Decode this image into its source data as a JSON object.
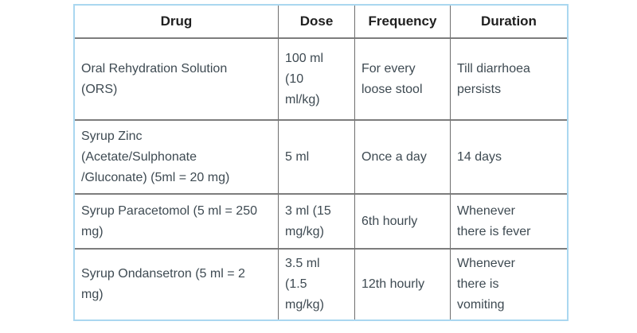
{
  "table": {
    "name": "drug-dosage-table",
    "headers": {
      "drug": "Drug",
      "dose": "Dose",
      "frequency": "Frequency",
      "duration": "Duration"
    },
    "rows": [
      {
        "drug": "Oral Rehydration Solution\n(ORS)",
        "dose": "100 ml\n(10\nml/kg)",
        "frequency": "For every\nloose stool",
        "duration": "Till diarrhoea\npersists"
      },
      {
        "drug": "Syrup Zinc\n(Acetate/Sulphonate\n/Gluconate) (5ml = 20 mg)",
        "dose": "5 ml",
        "frequency": "Once a day",
        "duration": "14 days"
      },
      {
        "drug": "Syrup Paracetomol (5 ml = 250\nmg)",
        "dose": "3 ml (15\nmg/kg)",
        "frequency": "6th hourly",
        "duration": "Whenever\nthere is fever"
      },
      {
        "drug": "Syrup Ondansetron (5 ml = 2\nmg)",
        "dose": "3.5 ml\n(1.5\nmg/kg)",
        "frequency": "12th hourly",
        "duration": "Whenever\nthere is\nvomiting"
      }
    ]
  },
  "colors": {
    "outer_border": "#aad7f0",
    "grid_vertical": "#6f6f6f",
    "grid_horizontal": "#7d7d7d",
    "header_text": "#1f1f1f",
    "body_text": "#3e4a52",
    "background": "#ffffff"
  }
}
